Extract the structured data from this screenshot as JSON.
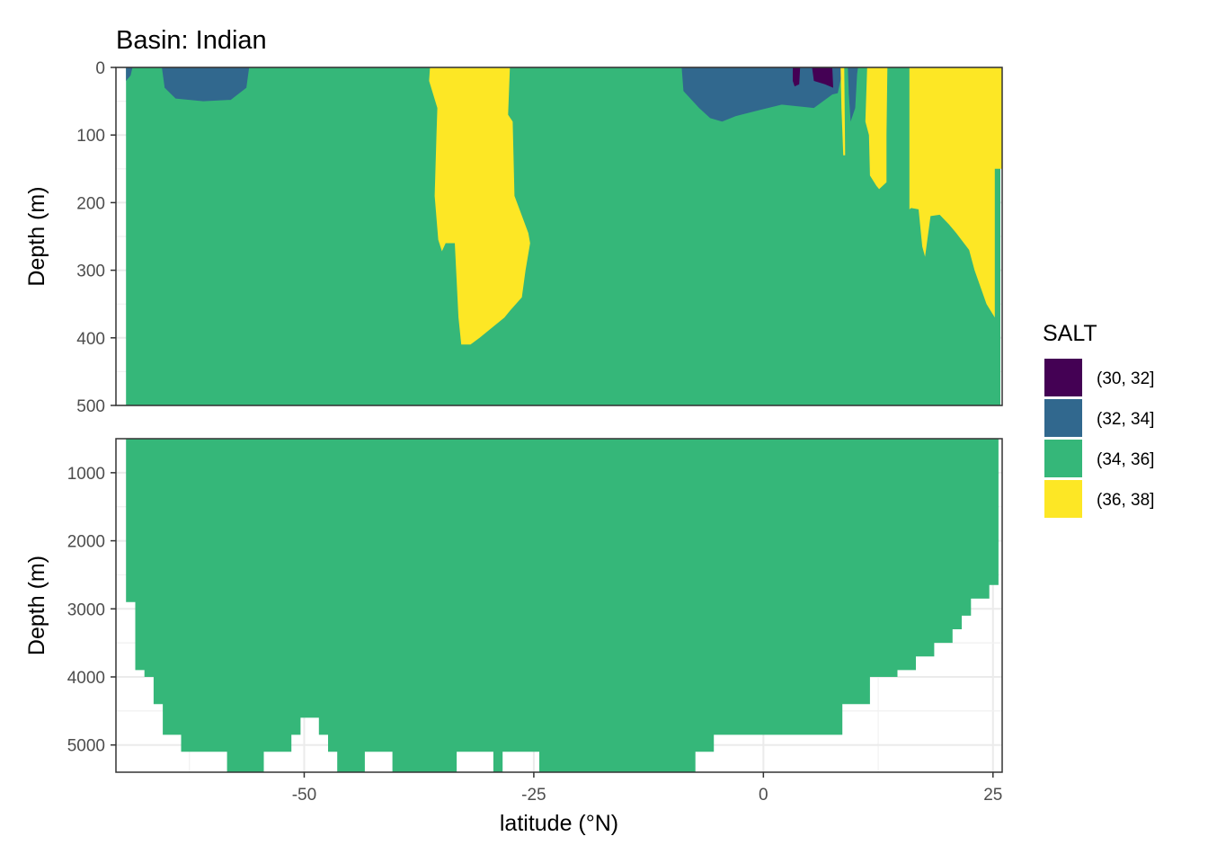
{
  "chart_data": {
    "type": "area",
    "title": "Basin: Indian",
    "xlabel": "latitude (°N)",
    "ylabel": "Depth (m)",
    "xlim": [
      -70.5,
      26
    ],
    "x_ticks": [
      "-50",
      "-25",
      "0",
      "25"
    ],
    "x_tick_values": [
      -50,
      -25,
      0,
      25
    ],
    "legend": {
      "title": "SALT",
      "position": "right",
      "entries": [
        {
          "label": "(30, 32]",
          "color": "#440154"
        },
        {
          "label": "(32, 34]",
          "color": "#31688e"
        },
        {
          "label": "(34, 36]",
          "color": "#35b779"
        },
        {
          "label": "(36, 38]",
          "color": "#fde725"
        }
      ]
    },
    "grid": true,
    "panels": [
      {
        "name": "upper",
        "ylim": [
          500,
          0
        ],
        "y_ticks": [
          "0",
          "100",
          "200",
          "300",
          "400",
          "500"
        ],
        "y_tick_values": [
          0,
          100,
          200,
          300,
          400,
          500
        ],
        "regions": [
          {
            "class": "(34, 36]",
            "points": [
              [
                -69.4,
                500
              ],
              [
                -69.4,
                0
              ],
              [
                25.8,
                0
              ],
              [
                25.8,
                500
              ]
            ]
          },
          {
            "class": "(32, 34]",
            "points": [
              [
                -69.4,
                0
              ],
              [
                -68.7,
                0
              ],
              [
                -68.9,
                12
              ],
              [
                -69.4,
                20
              ]
            ]
          },
          {
            "class": "(32, 34]",
            "points": [
              [
                -65.5,
                0
              ],
              [
                -56,
                0
              ],
              [
                -56.3,
                30
              ],
              [
                -58,
                48
              ],
              [
                -61,
                50
              ],
              [
                -64,
                46
              ],
              [
                -65.2,
                30
              ]
            ]
          },
          {
            "class": "(36, 38]",
            "points": [
              [
                -36.3,
                0
              ],
              [
                -27.6,
                0
              ],
              [
                -27.8,
                70
              ],
              [
                -27.3,
                80
              ],
              [
                -27.1,
                190
              ],
              [
                -25.6,
                245
              ],
              [
                -25.4,
                260
              ],
              [
                -25.9,
                300
              ],
              [
                -26.3,
                340
              ],
              [
                -27.6,
                360
              ],
              [
                -28.2,
                370
              ],
              [
                -30.9,
                400
              ],
              [
                -31.9,
                410
              ],
              [
                -32.9,
                410
              ],
              [
                -33.2,
                370
              ],
              [
                -33.6,
                260
              ],
              [
                -34.6,
                260
              ],
              [
                -35,
                272
              ],
              [
                -35.4,
                255
              ],
              [
                -35.8,
                190
              ],
              [
                -35.6,
                100
              ],
              [
                -35.5,
                60
              ],
              [
                -36.4,
                20
              ]
            ]
          },
          {
            "class": "(32, 34]",
            "points": [
              [
                -8.9,
                0
              ],
              [
                8.7,
                0
              ],
              [
                8.1,
                38
              ],
              [
                7.5,
                40
              ],
              [
                5.5,
                60
              ],
              [
                2,
                55
              ],
              [
                -0.4,
                63
              ],
              [
                -3,
                72
              ],
              [
                -4.5,
                80
              ],
              [
                -5.8,
                75
              ],
              [
                -6.2,
                70
              ],
              [
                -7,
                60
              ],
              [
                -8.7,
                35
              ]
            ]
          },
          {
            "class": "(30, 32]",
            "points": [
              [
                3.2,
                0
              ],
              [
                4,
                0
              ],
              [
                3.9,
                25
              ],
              [
                3.4,
                28
              ],
              [
                3.2,
                20
              ]
            ]
          },
          {
            "class": "(30, 32]",
            "points": [
              [
                5.3,
                0
              ],
              [
                7.5,
                0
              ],
              [
                7.6,
                30
              ],
              [
                6.7,
                25
              ],
              [
                5.5,
                20
              ]
            ]
          },
          {
            "class": "(32, 34]",
            "points": [
              [
                9.2,
                0
              ],
              [
                10.3,
                0
              ],
              [
                10.2,
                10
              ],
              [
                10,
                60
              ],
              [
                9.5,
                80
              ],
              [
                9.3,
                40
              ]
            ]
          },
          {
            "class": "(36, 38]",
            "points": [
              [
                8.4,
                0
              ],
              [
                8.8,
                0
              ],
              [
                8.9,
                130
              ],
              [
                8.7,
                130
              ],
              [
                8.5,
                60
              ]
            ]
          },
          {
            "class": "(36, 38]",
            "points": [
              [
                10.3,
                0
              ],
              [
                11.3,
                0
              ],
              [
                11.1,
                80
              ],
              [
                11.5,
                100
              ],
              [
                11.6,
                160
              ],
              [
                12.3,
                175
              ],
              [
                12.6,
                180
              ],
              [
                13.4,
                170
              ],
              [
                13.4,
                100
              ],
              [
                13.5,
                0
              ]
            ]
          },
          {
            "class": "(36, 38]",
            "points": [
              [
                15.9,
                0
              ],
              [
                26,
                0
              ],
              [
                26,
                150
              ],
              [
                25.2,
                150
              ],
              [
                25.2,
                370
              ],
              [
                24.3,
                350
              ],
              [
                23,
                300
              ],
              [
                22.4,
                270
              ],
              [
                21,
                245
              ],
              [
                20.2,
                232
              ],
              [
                19.2,
                218
              ],
              [
                18.2,
                220
              ],
              [
                17.6,
                280
              ],
              [
                17.3,
                265
              ],
              [
                16.9,
                210
              ],
              [
                16.1,
                208
              ],
              [
                15.9,
                210
              ],
              [
                15.9,
                100
              ]
            ]
          }
        ]
      },
      {
        "name": "lower",
        "ylim": [
          5400,
          500
        ],
        "y_ticks": [
          "1000",
          "2000",
          "3000",
          "4000",
          "5000"
        ],
        "y_tick_values": [
          1000,
          2000,
          3000,
          4000,
          5000
        ],
        "bottom_profile": [
          [
            -69.4,
            2900
          ],
          [
            -68.4,
            3900
          ],
          [
            -67.4,
            4000
          ],
          [
            -66.4,
            4400
          ],
          [
            -65.4,
            4850
          ],
          [
            -63.4,
            5100
          ],
          [
            -58.4,
            5400
          ],
          [
            -54.4,
            5100
          ],
          [
            -51.4,
            4850
          ],
          [
            -50.4,
            4600
          ],
          [
            -48.4,
            4850
          ],
          [
            -47.4,
            5100
          ],
          [
            -46.4,
            5400
          ],
          [
            -43.4,
            5100
          ],
          [
            -40.4,
            5400
          ],
          [
            -33.4,
            5100
          ],
          [
            -29.4,
            5400
          ],
          [
            -28.4,
            5100
          ],
          [
            -24.4,
            5400
          ],
          [
            -7.4,
            5100
          ],
          [
            -5.4,
            4850
          ],
          [
            8.6,
            4400
          ],
          [
            11.6,
            4000
          ],
          [
            14.6,
            3900
          ],
          [
            16.6,
            3700
          ],
          [
            18.6,
            3500
          ],
          [
            20.6,
            3300
          ],
          [
            21.6,
            3100
          ],
          [
            22.6,
            2850
          ],
          [
            24.6,
            2650
          ],
          [
            25.6,
            2650
          ]
        ]
      }
    ]
  }
}
